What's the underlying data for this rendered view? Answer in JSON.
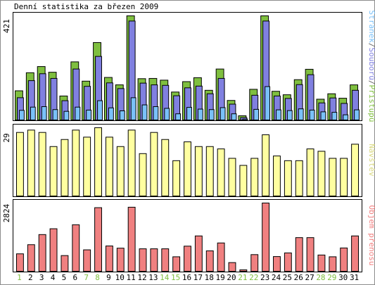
{
  "chart_data": [
    {
      "type": "bar",
      "title": "Denní statistika za březen 2009",
      "ymax_label": "421",
      "side_label_parts": [
        {
          "text": "Stránek",
          "color": "#7ac1f9"
        },
        {
          "text": "/",
          "color": "#6b6b6b"
        },
        {
          "text": "Souborů",
          "color": "#8080e0"
        },
        {
          "text": "/",
          "color": "#6b6b6b"
        },
        {
          "text": "Přístupů",
          "color": "#7fbf3f"
        }
      ],
      "ylim": [
        0,
        421
      ],
      "categories": [
        "1",
        "2",
        "3",
        "4",
        "5",
        "6",
        "7",
        "8",
        "9",
        "10",
        "11",
        "12",
        "13",
        "14",
        "15",
        "16",
        "17",
        "18",
        "19",
        "20",
        "21",
        "22",
        "23",
        "24",
        "25",
        "26",
        "27",
        "28",
        "29",
        "30",
        "31"
      ],
      "series": [
        {
          "name": "Přístupů",
          "color": "#7fbf3f",
          "values": [
            118,
            191,
            216,
            193,
            97,
            235,
            157,
            313,
            172,
            142,
            421,
            167,
            168,
            161,
            113,
            155,
            171,
            120,
            206,
            79,
            17,
            124,
            421,
            116,
            102,
            163,
            205,
            84,
            106,
            88,
            142
          ]
        },
        {
          "name": "Souborů",
          "color": "#8080e0",
          "values": [
            90,
            159,
            187,
            168,
            78,
            206,
            136,
            257,
            150,
            127,
            400,
            149,
            142,
            140,
            98,
            130,
            137,
            106,
            168,
            64,
            10,
            100,
            400,
            97,
            87,
            143,
            183,
            69,
            89,
            67,
            120
          ]
        },
        {
          "name": "Stránek",
          "color": "#7ac1f9",
          "values": [
            39,
            52,
            54,
            42,
            35,
            52,
            40,
            78,
            49,
            37,
            90,
            61,
            54,
            47,
            25,
            51,
            44,
            42,
            50,
            25,
            4,
            43,
            135,
            41,
            38,
            45,
            40,
            33,
            31,
            21,
            41
          ]
        }
      ]
    },
    {
      "type": "bar",
      "ymax_label": "29",
      "side_label": "Návštěv",
      "side_label_color": "#d8d880",
      "ylim": [
        0,
        29
      ],
      "categories": [
        "1",
        "2",
        "3",
        "4",
        "5",
        "6",
        "7",
        "8",
        "9",
        "10",
        "11",
        "12",
        "13",
        "14",
        "15",
        "16",
        "17",
        "18",
        "19",
        "20",
        "21",
        "22",
        "23",
        "24",
        "25",
        "26",
        "27",
        "28",
        "29",
        "30",
        "31"
      ],
      "series": [
        {
          "name": "Návštěv",
          "color": "#ffffa0",
          "values": [
            27,
            28,
            27,
            21,
            24,
            28,
            25,
            29,
            25,
            21,
            28,
            18,
            27,
            24,
            15,
            23,
            21,
            21,
            20,
            16,
            13,
            16,
            26,
            17,
            15,
            15,
            20,
            19,
            16,
            16,
            22
          ]
        }
      ]
    },
    {
      "type": "bar",
      "ymax_label": "2824",
      "side_label": "Objem přenosu",
      "side_label_color": "#f08080",
      "ylim": [
        0,
        2824
      ],
      "categories": [
        "1",
        "2",
        "3",
        "4",
        "5",
        "6",
        "7",
        "8",
        "9",
        "10",
        "11",
        "12",
        "13",
        "14",
        "15",
        "16",
        "17",
        "18",
        "19",
        "20",
        "21",
        "22",
        "23",
        "24",
        "25",
        "26",
        "27",
        "28",
        "29",
        "30",
        "31"
      ],
      "series": [
        {
          "name": "Objem přenosu",
          "color": "#f08080",
          "values": [
            722,
            1100,
            1519,
            1760,
            650,
            1925,
            887,
            2632,
            1048,
            957,
            2651,
            930,
            930,
            930,
            600,
            1040,
            1463,
            846,
            1172,
            360,
            60,
            690,
            2824,
            609,
            760,
            1393,
            1393,
            673,
            600,
            965,
            1463
          ]
        }
      ]
    }
  ],
  "x_label_colors": {
    "weekday": "#000000",
    "weekend": "#7fbf3f"
  },
  "weekend_days": [
    "1",
    "7",
    "8",
    "14",
    "15",
    "21",
    "22",
    "28",
    "29"
  ]
}
